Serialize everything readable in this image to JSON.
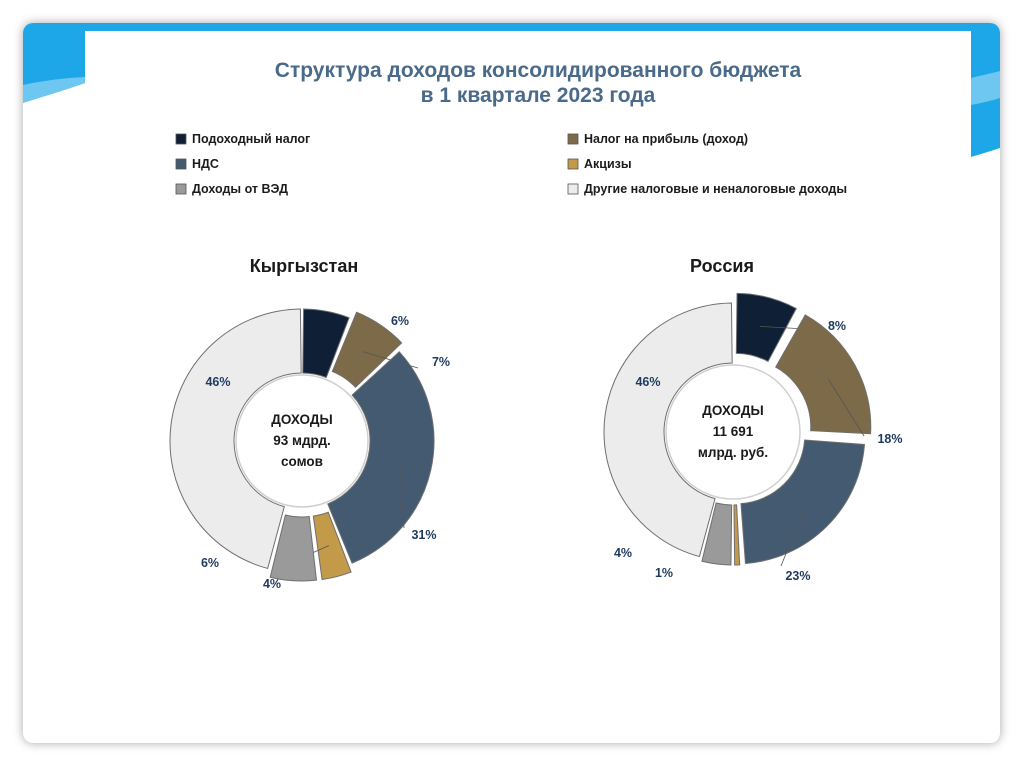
{
  "colors": {
    "frame_accent": "#1ea7e8",
    "title": "#4a6a8a",
    "label": "#1f3a5f"
  },
  "chart_data": [
    {
      "type": "pie",
      "variant": "donut",
      "title_line1": "Структура доходов консолидированного бюджета",
      "title_line2": "в 1 квартале 2023 года",
      "subtitle": "Кыргызстан",
      "center_lines": [
        "ДОХОДЫ",
        "93 мдрд.",
        "сомов"
      ],
      "categories": [
        "Подоходный налог",
        "Налог на прибыль (доход)",
        "НДС",
        "Акцизы",
        "Доходы от ВЭД",
        "Другие налоговые и неналоговые доходы"
      ],
      "values": [
        6,
        7,
        31,
        4,
        6,
        46
      ],
      "labels": [
        "6%",
        "7%",
        "31%",
        "4%",
        "6%",
        "46%"
      ],
      "colors": [
        "#0f1f35",
        "#7c6a48",
        "#445a70",
        "#c29a4a",
        "#9a9a9a",
        "#ececec"
      ],
      "legend": "top"
    },
    {
      "type": "pie",
      "variant": "donut",
      "subtitle": "Россия",
      "center_lines": [
        "ДОХОДЫ",
        "11 691",
        "млрд. руб."
      ],
      "categories": [
        "Подоходный налог",
        "Налог на прибыль (доход)",
        "НДС",
        "Акцизы",
        "Доходы от ВЭД",
        "Другие налоговые и неналоговые доходы"
      ],
      "values": [
        8,
        18,
        23,
        1,
        4,
        46
      ],
      "labels": [
        "8%",
        "18%",
        "23%",
        "1%",
        "4%",
        "46%"
      ],
      "colors": [
        "#0f1f35",
        "#7c6a48",
        "#445a70",
        "#c29a4a",
        "#9a9a9a",
        "#ececec"
      ],
      "legend": "top"
    }
  ],
  "legend": {
    "left": [
      {
        "label": "Подоходный налог",
        "color": "#0f1f35"
      },
      {
        "label": "НДС",
        "color": "#445a70"
      },
      {
        "label": "Доходы от ВЭД",
        "color": "#9a9a9a"
      }
    ],
    "right": [
      {
        "label": "Налог на прибыль (доход)",
        "color": "#7c6a48"
      },
      {
        "label": "Акцизы",
        "color": "#c29a4a"
      },
      {
        "label": "Другие налоговые и неналоговые доходы",
        "color": "#ececec"
      }
    ]
  }
}
